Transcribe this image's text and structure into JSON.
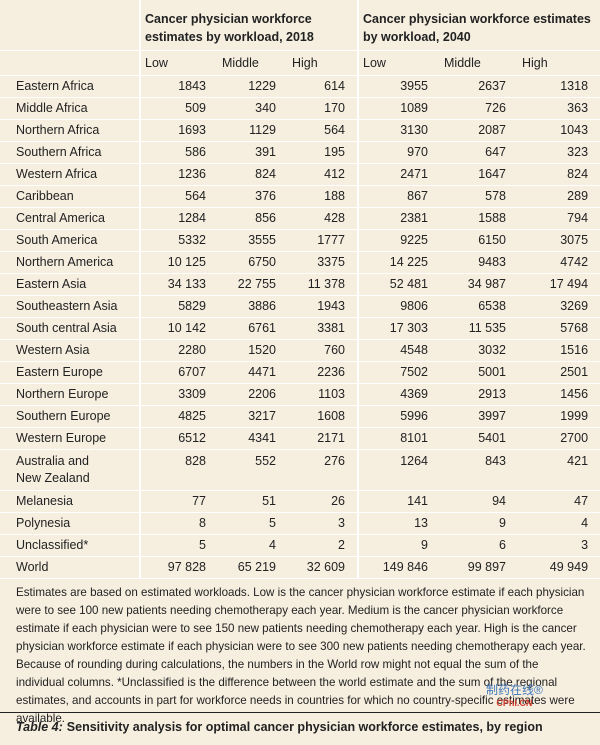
{
  "table": {
    "group_headers": [
      "Cancer physician workforce estimates by workload, 2018",
      "Cancer physician workforce estimates by workload, 2040"
    ],
    "columns": [
      "Low",
      "Middle",
      "High",
      "Low",
      "Middle",
      "High"
    ],
    "rows": [
      {
        "label": "Eastern Africa",
        "values": [
          "1843",
          "1229",
          "614",
          "3955",
          "2637",
          "1318"
        ]
      },
      {
        "label": "Middle Africa",
        "values": [
          "509",
          "340",
          "170",
          "1089",
          "726",
          "363"
        ]
      },
      {
        "label": "Northern Africa",
        "values": [
          "1693",
          "1129",
          "564",
          "3130",
          "2087",
          "1043"
        ]
      },
      {
        "label": "Southern Africa",
        "values": [
          "586",
          "391",
          "195",
          "970",
          "647",
          "323"
        ]
      },
      {
        "label": "Western Africa",
        "values": [
          "1236",
          "824",
          "412",
          "2471",
          "1647",
          "824"
        ]
      },
      {
        "label": "Caribbean",
        "values": [
          "564",
          "376",
          "188",
          "867",
          "578",
          "289"
        ]
      },
      {
        "label": "Central America",
        "values": [
          "1284",
          "856",
          "428",
          "2381",
          "1588",
          "794"
        ]
      },
      {
        "label": "South America",
        "values": [
          "5332",
          "3555",
          "1777",
          "9225",
          "6150",
          "3075"
        ]
      },
      {
        "label": "Northern America",
        "values": [
          "10 125",
          "6750",
          "3375",
          "14 225",
          "9483",
          "4742"
        ]
      },
      {
        "label": "Eastern Asia",
        "values": [
          "34 133",
          "22 755",
          "11 378",
          "52 481",
          "34 987",
          "17 494"
        ]
      },
      {
        "label": "Southeastern Asia",
        "values": [
          "5829",
          "3886",
          "1943",
          "9806",
          "6538",
          "3269"
        ]
      },
      {
        "label": "South central Asia",
        "values": [
          "10 142",
          "6761",
          "3381",
          "17 303",
          "11 535",
          "5768"
        ]
      },
      {
        "label": "Western Asia",
        "values": [
          "2280",
          "1520",
          "760",
          "4548",
          "3032",
          "1516"
        ]
      },
      {
        "label": "Eastern Europe",
        "values": [
          "6707",
          "4471",
          "2236",
          "7502",
          "5001",
          "2501"
        ]
      },
      {
        "label": "Northern Europe",
        "values": [
          "3309",
          "2206",
          "1103",
          "4369",
          "2913",
          "1456"
        ]
      },
      {
        "label": "Southern Europe",
        "values": [
          "4825",
          "3217",
          "1608",
          "5996",
          "3997",
          "1999"
        ]
      },
      {
        "label": "Western Europe",
        "values": [
          "6512",
          "4341",
          "2171",
          "8101",
          "5401",
          "2700"
        ]
      },
      {
        "label": "Australia and\nNew Zealand",
        "values": [
          "828",
          "552",
          "276",
          "1264",
          "843",
          "421"
        ]
      },
      {
        "label": "Melanesia",
        "values": [
          "77",
          "51",
          "26",
          "141",
          "94",
          "47"
        ]
      },
      {
        "label": "Polynesia",
        "values": [
          "8",
          "5",
          "3",
          "13",
          "9",
          "4"
        ]
      },
      {
        "label": "Unclassified*",
        "values": [
          "5",
          "4",
          "2",
          "9",
          "6",
          "3"
        ]
      },
      {
        "label": "World",
        "values": [
          "97 828",
          "65 219",
          "32 609",
          "149 846",
          "99 897",
          "49 949"
        ]
      }
    ]
  },
  "footnote": "Estimates are based on estimated workloads. Low is the cancer physician workforce estimate if each physician were to see 100 new patients needing chemotherapy each year. Medium is the cancer physician workforce estimate if each physician were to see 150 new patients needing chemotherapy each year. High is the cancer physician workforce estimate if each physician were to see 300 new patients needing chemotherapy each year. Because of rounding during calculations, the numbers in the World row might not equal the sum of the individual columns. *Unclassified is the difference between the world estimate and the sum of the regional estimates, and accounts in part for workforce needs in countries for which no country-specific estimates were available.",
  "caption": {
    "label": "Table 4:",
    "text": "Sensitivity analysis for optimal cancer physician workforce estimates, by region"
  },
  "watermark": {
    "name": "制药在线®",
    "site": "CPhI.CN"
  }
}
